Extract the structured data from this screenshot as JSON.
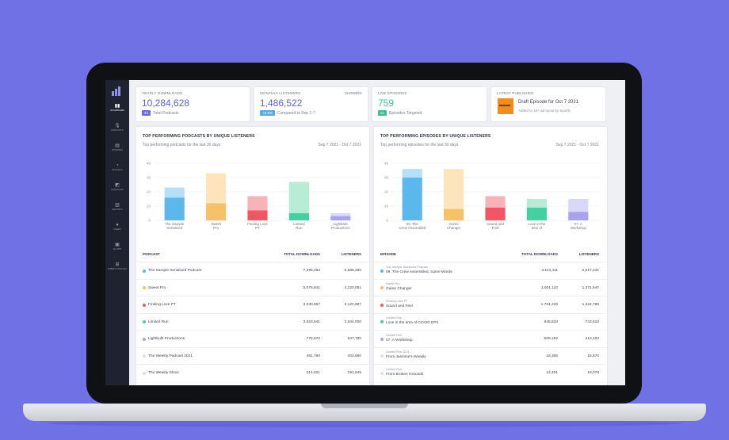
{
  "stats": {
    "downloads": {
      "title": "Yearly Downloads",
      "value": "10,284,628",
      "badge": "24",
      "badge_color": "#6c6ce0",
      "sub": "Total Podcasts"
    },
    "listeners": {
      "title": "Monthly Listeners",
      "right": "Showing",
      "value": "1,486,522",
      "badge": "+9.6%",
      "badge_color": "#5aa9e0",
      "sub": "Compared to Sep 1-7"
    },
    "episodes": {
      "title": "Live Episodes",
      "value": "759",
      "badge": "21",
      "badge_color": "#3fbf8f",
      "sub": "Episodes Targeted"
    },
    "latest": {
      "title": "Latest Published",
      "episode": "Draft Episode for Oct 7 2021",
      "sub": "Added to 10+ ad spots by Spotify"
    }
  },
  "podcasts": {
    "title": "TOP PERFORMING PODCASTS BY UNIQUE LISTENERS",
    "subtitle": "Top performing podcasts for the last 30 days",
    "range": "Sep 7 2021 - Oct 7 2021",
    "columns": {
      "name": "Podcast",
      "downloads": "Total Downloads",
      "listeners": "Listeners"
    },
    "rows": [
      {
        "name": "The Sample Serialized Podcast",
        "downloads": "7,296,292",
        "listeners": "6,585,480",
        "color": "#5cb8ec"
      },
      {
        "name": "Sweet Pro",
        "downloads": "5,076,841",
        "listeners": "4,220,061",
        "color": "#f7c168"
      },
      {
        "name": "Finding Love PT",
        "downloads": "3,030,897",
        "listeners": "3,120,887",
        "color": "#f05664"
      },
      {
        "name": "Limited Run",
        "downloads": "3,623,541",
        "listeners": "2,634,000",
        "color": "#46cfa0"
      },
      {
        "name": "Lightbulb Productions",
        "downloads": "776,870",
        "listeners": "647,780",
        "color": "#a8a3ec"
      },
      {
        "name": "The Weekly Podcast 2021",
        "downloads": "461,780",
        "listeners": "403,660",
        "color": "#dde0e6"
      },
      {
        "name": "The Weekly Show",
        "downloads": "214,021",
        "listeners": "191,045",
        "color": "#dde0e6"
      }
    ]
  },
  "episodes": {
    "title": "TOP PERFORMING EPISODES BY UNIQUE LISTENERS",
    "subtitle": "Top performing episodes for the last 30 days",
    "range": "Sep 7 2021 - Oct 7 2021",
    "columns": {
      "name": "Episode",
      "downloads": "Total Downloads",
      "listeners": "Listeners"
    },
    "rows": [
      {
        "show": "The Sample Serialized Podcast",
        "name": "09. The Crew Assembled, Same Words",
        "downloads": "3,113,411",
        "listeners": "2,017,241",
        "color": "#5cb8ec"
      },
      {
        "show": "Sweet Pro",
        "name": "Game Changer",
        "downloads": "1,601,110",
        "listeners": "1,371,547",
        "color": "#f7c168"
      },
      {
        "show": "Finding Love PT",
        "name": "Sound and Feel",
        "downloads": "1,761,220",
        "listeners": "1,324,780",
        "color": "#f05664"
      },
      {
        "show": "Limited Run",
        "name": "Love in the time of COVID EP2",
        "downloads": "945,833",
        "listeners": "743,610",
        "color": "#46cfa0"
      },
      {
        "show": "Limited Run",
        "name": "07. A Workshop",
        "downloads": "509,182",
        "listeners": "413,100",
        "color": "#a8a3ec"
      },
      {
        "show": "Limited Run 2021",
        "name": "From Jasmine's Weekly",
        "downloads": "18,365",
        "listeners": "16,570",
        "color": "#dde0e6"
      },
      {
        "show": "Limited Run",
        "name": "From Broken Grounds",
        "downloads": "13,401",
        "listeners": "18,070",
        "color": "#dde0e6"
      }
    ]
  },
  "nav": [
    {
      "label": "Dashboard",
      "icon": "▮▮"
    },
    {
      "label": "Podcasts",
      "icon": "🎙"
    },
    {
      "label": "Episodes",
      "icon": "▤"
    },
    {
      "label": "Insights",
      "icon": "◔"
    },
    {
      "label": "Campaigns",
      "icon": "◩"
    },
    {
      "label": "Reports",
      "icon": "▥"
    },
    {
      "label": "Users",
      "icon": "●"
    },
    {
      "label": "Ad Ops",
      "icon": "▣"
    },
    {
      "label": "Submit Podcast",
      "icon": "⊞"
    }
  ],
  "chart_data": [
    {
      "type": "bar",
      "title": "TOP PERFORMING PODCASTS BY UNIQUE LISTENERS",
      "categories": [
        "The Sample Serialized",
        "Sweet Pro",
        "Finding Love PT",
        "Limited Run",
        "Lightbulb Productions"
      ],
      "series": [
        {
          "name": "Listeners",
          "values": [
            16,
            12,
            7,
            5,
            3
          ]
        },
        {
          "name": "Downloads",
          "values": [
            23,
            33,
            17,
            27,
            5
          ]
        }
      ],
      "colors": [
        [
          "#5cb8ec",
          "#b5e0f8"
        ],
        [
          "#f7c168",
          "#fce4bd"
        ],
        [
          "#f05664",
          "#f8b3b8"
        ],
        [
          "#46cfa0",
          "#b7ecd6"
        ],
        [
          "#a8a3ec",
          "#dad8f8"
        ]
      ],
      "yticks": [
        0,
        10,
        20,
        30,
        40
      ],
      "ylim": [
        0,
        40
      ]
    },
    {
      "type": "bar",
      "title": "TOP PERFORMING EPISODES BY UNIQUE LISTENERS",
      "categories": [
        "09. The Crew Assembled",
        "Game Changer",
        "Sound and Feel",
        "Love in the time of",
        "07. A Workshop"
      ],
      "series": [
        {
          "name": "Listeners",
          "values": [
            30,
            8,
            9,
            9,
            6
          ]
        },
        {
          "name": "Downloads",
          "values": [
            36,
            36,
            17,
            15,
            15
          ]
        }
      ],
      "colors": [
        [
          "#5cb8ec",
          "#b5e0f8"
        ],
        [
          "#f7c168",
          "#fce4bd"
        ],
        [
          "#f05664",
          "#f8b3b8"
        ],
        [
          "#46cfa0",
          "#b7ecd6"
        ],
        [
          "#a8a3ec",
          "#dad8f8"
        ]
      ],
      "yticks": [
        0,
        10,
        20,
        30,
        40
      ],
      "ylim": [
        0,
        40
      ]
    }
  ]
}
